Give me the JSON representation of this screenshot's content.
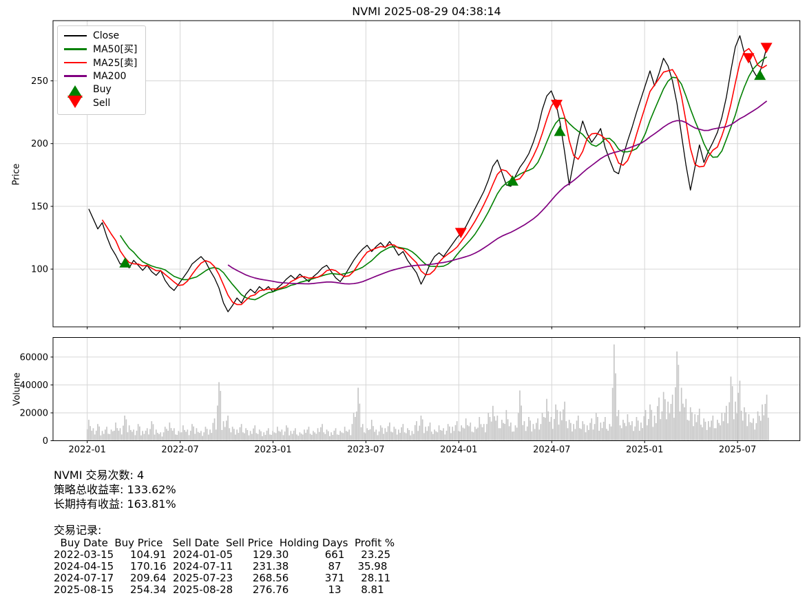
{
  "page": {
    "title": "NVMI 2025-08-29 04:38:14"
  },
  "chart_data": {
    "type": "line",
    "title": "NVMI 2025-08-29 04:38:14",
    "price_axis_label": "Price",
    "volume_axis_label": "Volume",
    "x_unit": "months_since_2022-01",
    "x_ticks": {
      "positions_months": [
        0,
        6,
        12,
        18,
        24,
        30,
        36,
        42
      ],
      "labels": [
        "2022-01",
        "2022-07",
        "2023-01",
        "2023-07",
        "2024-01",
        "2024-07",
        "2025-01",
        "2025-07"
      ]
    },
    "price_ticks": [
      100,
      150,
      200,
      250
    ],
    "volume_ticks": [
      0,
      20000,
      40000,
      60000
    ],
    "xlim_months": [
      -2.21,
      46.03
    ],
    "price_ylim": [
      54,
      298
    ],
    "volume_ylim": [
      0,
      74000
    ],
    "grid": true,
    "legend_position": "upper-left",
    "series_colors": {
      "close": "#000000",
      "ma50": "#008000",
      "ma25": "#ff0000",
      "ma200": "#800080",
      "volume_bar": "#c6c6c6",
      "gridline": "#d6d6d6"
    },
    "ma_windows_points": {
      "ma25": 4,
      "ma50": 8,
      "ma200": 32
    },
    "close": {
      "start_month": 0.1,
      "step_month": 0.29,
      "values": [
        148,
        140,
        132,
        137,
        126,
        117,
        111,
        104,
        105,
        101,
        107,
        103,
        99,
        103,
        98,
        95,
        99,
        91,
        86,
        83,
        88,
        93,
        98,
        104,
        107,
        110,
        106,
        99,
        93,
        85,
        73,
        66,
        71,
        77,
        73,
        80,
        84,
        81,
        86,
        83,
        86,
        82,
        85,
        88,
        92,
        95,
        92,
        96,
        93,
        90,
        94,
        97,
        101,
        103,
        98,
        93,
        90,
        95,
        101,
        107,
        112,
        116,
        119,
        114,
        118,
        121,
        117,
        122,
        117,
        111,
        114,
        107,
        102,
        97,
        88,
        95,
        104,
        110,
        113,
        110,
        115,
        120,
        125,
        129,
        134,
        141,
        148,
        155,
        162,
        171,
        182,
        187,
        177,
        167,
        166,
        174,
        181,
        186,
        192,
        201,
        212,
        227,
        238,
        242,
        233,
        216,
        193,
        167,
        186,
        204,
        218,
        208,
        201,
        206,
        212,
        197,
        187,
        178,
        176,
        190,
        202,
        213,
        225,
        236,
        247,
        258,
        246,
        256,
        268,
        262,
        250,
        232,
        207,
        183,
        163,
        181,
        199,
        185,
        194,
        201,
        209,
        221,
        237,
        258,
        277,
        286,
        272,
        268,
        258,
        252,
        263,
        277
      ]
    },
    "volume": {
      "start_month": 0.1,
      "step_month": 0.29,
      "values": [
        15000,
        9000,
        12000,
        7000,
        10000,
        8000,
        13000,
        9000,
        18000,
        11000,
        8000,
        12000,
        7000,
        9000,
        14000,
        8000,
        6000,
        10000,
        13000,
        9000,
        7000,
        11000,
        8000,
        12000,
        9000,
        7000,
        10000,
        8000,
        16000,
        42000,
        14000,
        18000,
        10000,
        8000,
        12000,
        9000,
        7000,
        11000,
        8000,
        6000,
        9000,
        7000,
        10000,
        8000,
        11000,
        7000,
        9000,
        6000,
        8000,
        10000,
        7000,
        9000,
        12000,
        8000,
        6000,
        9000,
        7000,
        10000,
        8000,
        20000,
        38000,
        12000,
        9000,
        15000,
        8000,
        11000,
        9000,
        13000,
        10000,
        8000,
        12000,
        9000,
        7000,
        14000,
        18000,
        10000,
        13000,
        8000,
        11000,
        9000,
        12000,
        10000,
        14000,
        11000,
        16000,
        13000,
        10000,
        17000,
        12000,
        20000,
        25000,
        18000,
        15000,
        22000,
        13000,
        11000,
        36000,
        14000,
        17000,
        12000,
        16000,
        20000,
        30000,
        17000,
        26000,
        21000,
        28000,
        15000,
        12000,
        18000,
        14000,
        11000,
        16000,
        20000,
        13000,
        17000,
        12000,
        69000,
        22000,
        15000,
        19000,
        14000,
        17000,
        13000,
        22000,
        26000,
        18000,
        31000,
        35000,
        28000,
        33000,
        64000,
        38000,
        30000,
        24000,
        19000,
        23000,
        16000,
        14000,
        18000,
        15000,
        20000,
        25000,
        46000,
        28000,
        43000,
        24000,
        19000,
        16000,
        21000,
        26000,
        33000
      ]
    },
    "buy_signals": [
      {
        "date": "2022-03-15",
        "month": 2.45,
        "price": 104.91
      },
      {
        "date": "2024-04-15",
        "month": 27.47,
        "price": 170.16
      },
      {
        "date": "2024-07-17",
        "month": 30.52,
        "price": 209.64
      },
      {
        "date": "2025-08-15",
        "month": 43.45,
        "price": 254.34
      }
    ],
    "sell_signals": [
      {
        "date": "2024-01-05",
        "month": 24.13,
        "price": 129.3
      },
      {
        "date": "2024-07-11",
        "month": 30.32,
        "price": 231.38
      },
      {
        "date": "2025-07-23",
        "month": 42.71,
        "price": 268.56
      },
      {
        "date": "2025-08-28",
        "month": 43.87,
        "price": 276.76
      }
    ]
  },
  "legend": {
    "items": [
      {
        "key": "close",
        "label": "Close",
        "color": "#000000",
        "swatch": "line"
      },
      {
        "key": "ma50",
        "label": "MA50[买]",
        "color": "#008000",
        "swatch": "line"
      },
      {
        "key": "ma25",
        "label": "MA25[卖]",
        "color": "#ff0000",
        "swatch": "line"
      },
      {
        "key": "ma200",
        "label": "MA200",
        "color": "#800080",
        "swatch": "line"
      },
      {
        "key": "buy",
        "label": "Buy",
        "color": "#008000",
        "swatch": "triangle-up"
      },
      {
        "key": "sell",
        "label": "Sell",
        "color": "#ff0000",
        "swatch": "triangle-down"
      }
    ]
  },
  "stats": [
    {
      "label": "NVMI 交易次数",
      "value": "4"
    },
    {
      "label": "策略总收益率",
      "value": "133.62%"
    },
    {
      "label": "长期持有收益",
      "value": "163.81%"
    }
  ],
  "trade_table": {
    "title": "交易记录:",
    "columns": [
      "Buy Date",
      "Buy Price",
      "Sell Date",
      "Sell Price",
      "Holding Days",
      "Profit %"
    ],
    "rows": [
      [
        "2022-03-15",
        "104.91",
        "2024-01-05",
        "129.30",
        "661",
        "23.25"
      ],
      [
        "2024-04-15",
        "170.16",
        "2024-07-11",
        "231.38",
        "87",
        "35.98"
      ],
      [
        "2024-07-17",
        "209.64",
        "2025-07-23",
        "268.56",
        "371",
        "28.11"
      ],
      [
        "2025-08-15",
        "254.34",
        "2025-08-28",
        "276.76",
        "13",
        "8.81"
      ]
    ]
  }
}
